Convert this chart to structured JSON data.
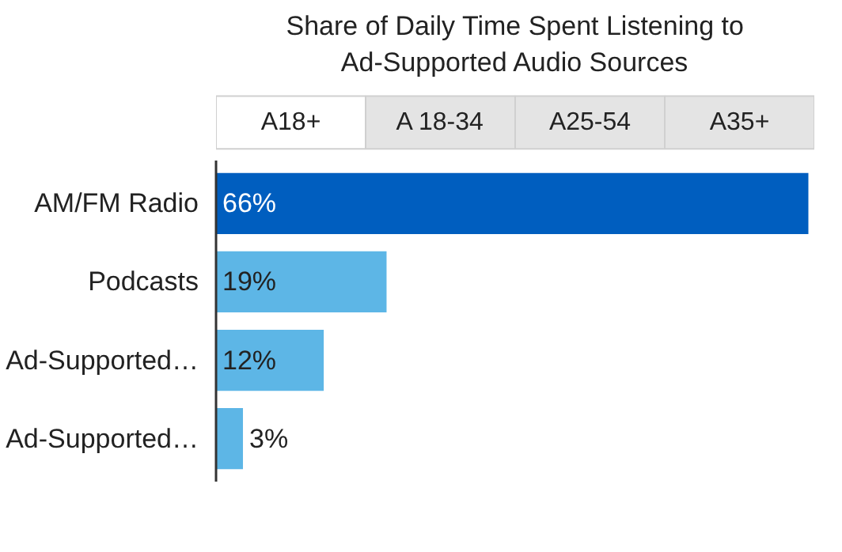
{
  "chart_data": {
    "type": "bar",
    "orientation": "horizontal",
    "title": "Share of Daily Time Spent Listening to\nAd-Supported Audio Sources",
    "annotations": [
      "A18+",
      "A 18-34",
      "A25-54",
      "A35+"
    ],
    "categories": [
      "AM/FM Radio",
      "Podcasts",
      "Ad-Supported…",
      "Ad-Supported…"
    ],
    "values": [
      66,
      19,
      12,
      3
    ],
    "colors": [
      "#005ebf",
      "#5db6e6",
      "#5db6e6",
      "#5db6e6"
    ],
    "value_labels": [
      "66%",
      "19%",
      "12%",
      "3%"
    ],
    "grid": false
  }
}
